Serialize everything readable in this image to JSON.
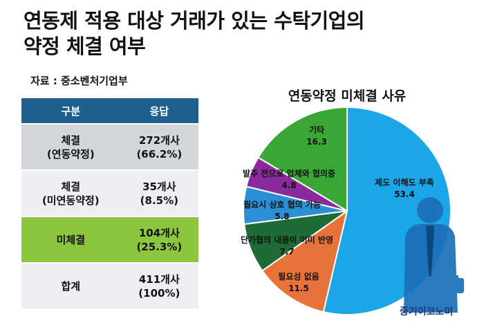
{
  "title_line1": "연동제 적용 대상 거래가 있는 수탁기업의",
  "title_line2": "약정 체결 여부",
  "source": "자료 : 중소벤처기업부",
  "table": {
    "headers": [
      "구분",
      "응답"
    ],
    "rows": [
      {
        "label_lines": [
          "체결",
          "(연동약정)"
        ],
        "value_lines": [
          "272개사",
          "(66.2%)"
        ]
      },
      {
        "label_lines": [
          "체결",
          "(미연동약정)"
        ],
        "value_lines": [
          "35개사",
          "(8.5%)"
        ]
      },
      {
        "label_lines": [
          "미체결"
        ],
        "value_lines": [
          "104개사",
          "(25.3%)"
        ]
      },
      {
        "label_lines": [
          "합계"
        ],
        "value_lines": [
          "411개사",
          "(100%)"
        ]
      }
    ]
  },
  "chart_data": {
    "type": "pie",
    "title": "연동약정 미체결 사유",
    "slices": [
      {
        "name": "제도 이해도 부족",
        "value": 53.4,
        "color": "#1ba6e8"
      },
      {
        "name": "필요성 없음",
        "value": 11.5,
        "color": "#e8733a"
      },
      {
        "name": "단가협의 내용이 이미 반영",
        "value": 7.7,
        "color": "#1e6b35"
      },
      {
        "name": "필요시 상호 협의 가능",
        "value": 5.8,
        "color": "#2a8fd4"
      },
      {
        "name": "발주 전으로 업체와 협의중",
        "value": 4.8,
        "color": "#8a2a9c"
      },
      {
        "name": "기타",
        "value": 16.3,
        "color": "#3aa635"
      }
    ],
    "start": "12 o'clock",
    "direction": "clockwise"
  },
  "brand": "중기이코노미"
}
